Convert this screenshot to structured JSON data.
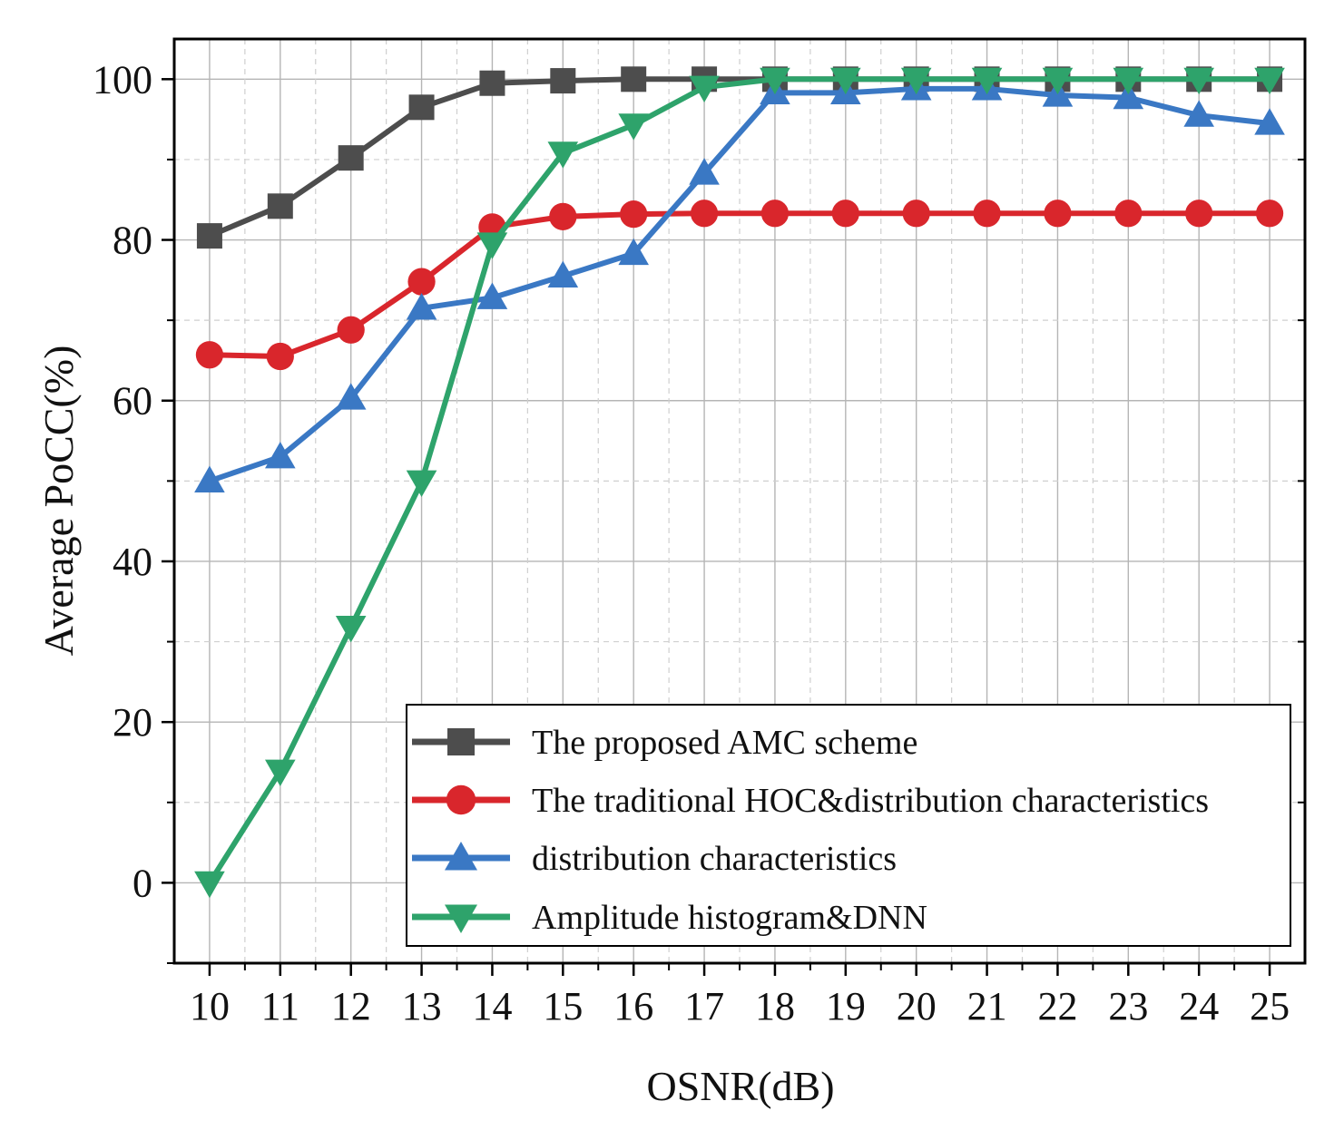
{
  "chart_data": {
    "type": "line",
    "title": "",
    "xlabel": "OSNR(dB)",
    "ylabel": "Average PoCC(%)",
    "xlim": [
      9.5,
      25.5
    ],
    "ylim": [
      -10,
      105
    ],
    "x": [
      10,
      11,
      12,
      13,
      14,
      15,
      16,
      17,
      18,
      19,
      20,
      21,
      22,
      23,
      24,
      25
    ],
    "x_ticks": [
      "10",
      "11",
      "12",
      "13",
      "14",
      "15",
      "16",
      "17",
      "18",
      "19",
      "20",
      "21",
      "22",
      "23",
      "24",
      "25"
    ],
    "y_ticks": [
      0,
      20,
      40,
      60,
      80,
      100
    ],
    "y_tick_labels": [
      "0",
      "20",
      "40",
      "60",
      "80",
      "100"
    ],
    "grid": true,
    "legend_position": "bottom-right",
    "series": [
      {
        "name": "The proposed AMC scheme",
        "color": "#4d4d4d",
        "marker": "square",
        "values": [
          80.5,
          84.2,
          90.2,
          96.5,
          99.5,
          99.8,
          100,
          100,
          100,
          100,
          100,
          100,
          100,
          100,
          100,
          100
        ]
      },
      {
        "name": "The traditional HOC&distribution characteristics",
        "color": "#d9262c",
        "marker": "circle",
        "values": [
          65.7,
          65.5,
          68.8,
          74.8,
          81.6,
          82.9,
          83.2,
          83.3,
          83.3,
          83.3,
          83.3,
          83.3,
          83.3,
          83.3,
          83.3,
          83.3
        ]
      },
      {
        "name": "distribution characteristics",
        "color": "#3a78c4",
        "marker": "triangle-up",
        "values": [
          50,
          53,
          60.3,
          71.5,
          72.8,
          75.5,
          78.3,
          88.3,
          98.3,
          98.3,
          98.8,
          98.8,
          98,
          97.7,
          95.5,
          94.5
        ]
      },
      {
        "name": "Amplitude histogram&DNN",
        "color": "#2ea36b",
        "marker": "triangle-down",
        "values": [
          0,
          13.9,
          31.8,
          49.9,
          79.5,
          90.8,
          94.3,
          99,
          100,
          100,
          100,
          100,
          100,
          100,
          100,
          100
        ]
      }
    ]
  }
}
